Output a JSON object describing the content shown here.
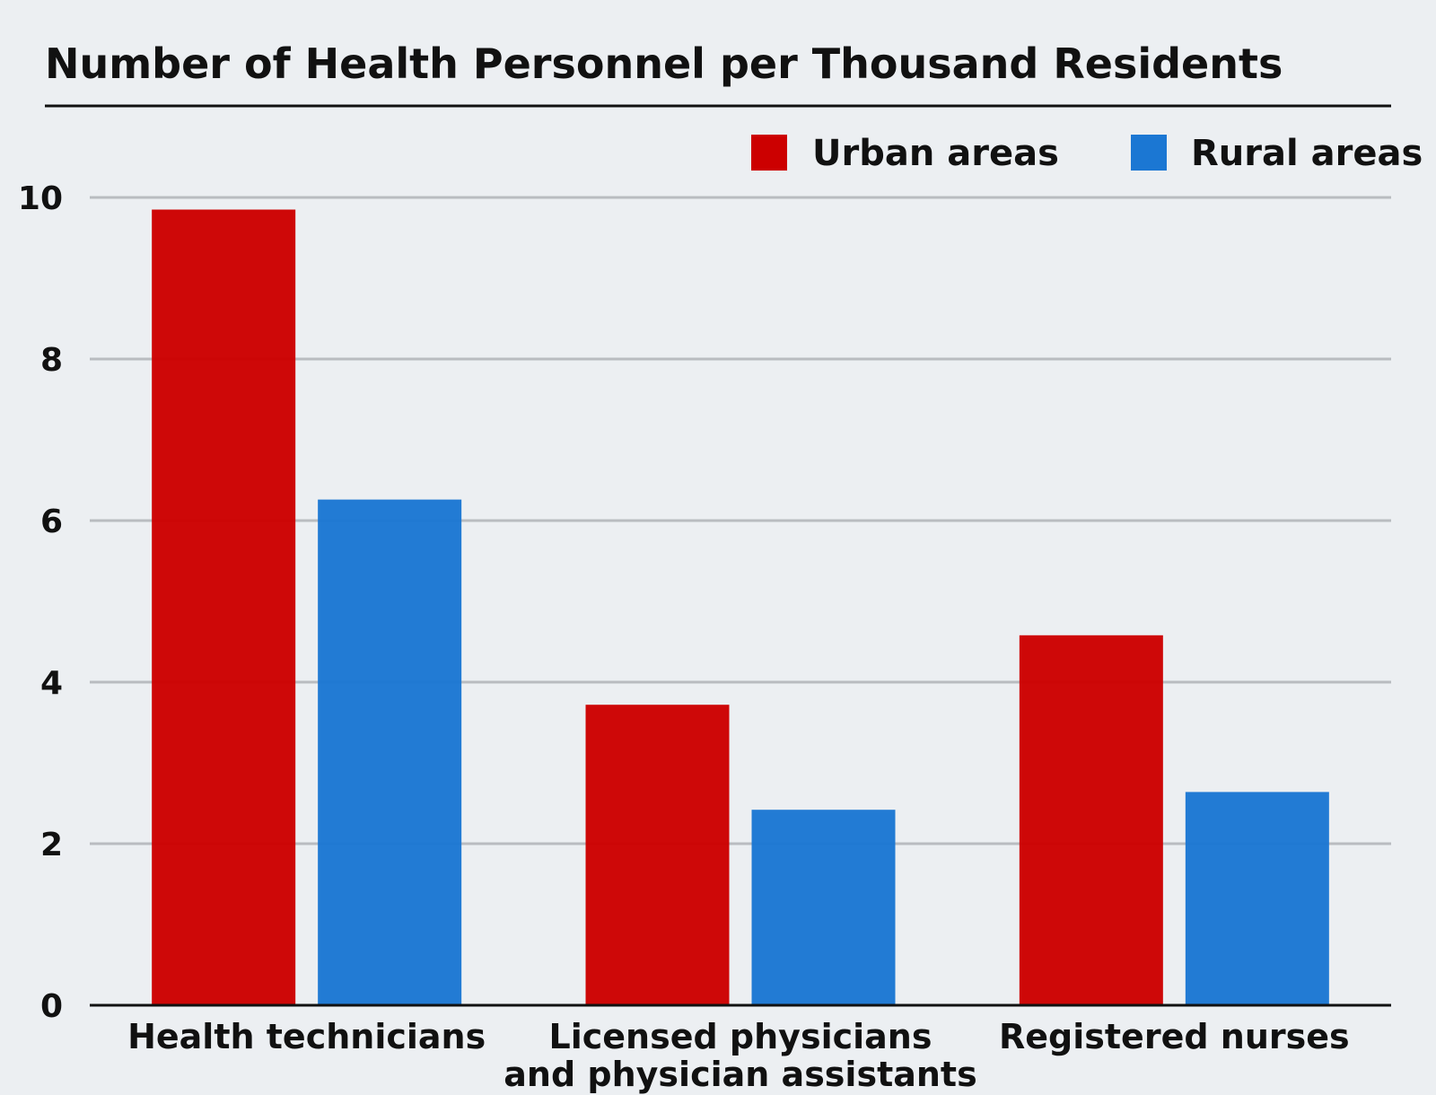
{
  "chart_data": {
    "type": "bar",
    "title": "Number of Health Personnel per Thousand Residents",
    "categories": [
      [
        "Health technicians"
      ],
      [
        "Licensed physicians",
        "and physician assistants"
      ],
      [
        "Registered nurses"
      ]
    ],
    "series": [
      {
        "name": "Urban areas",
        "color": "#cc0000",
        "values": [
          9.85,
          3.72,
          4.58
        ]
      },
      {
        "name": "Rural areas",
        "color": "#1b77d3",
        "values": [
          6.26,
          2.42,
          2.64
        ]
      }
    ],
    "ylim": [
      0,
      10
    ],
    "yticks": [
      0,
      2,
      4,
      6,
      8,
      10
    ],
    "grid": true,
    "legend": "top-right",
    "xlabel": "",
    "ylabel": ""
  }
}
